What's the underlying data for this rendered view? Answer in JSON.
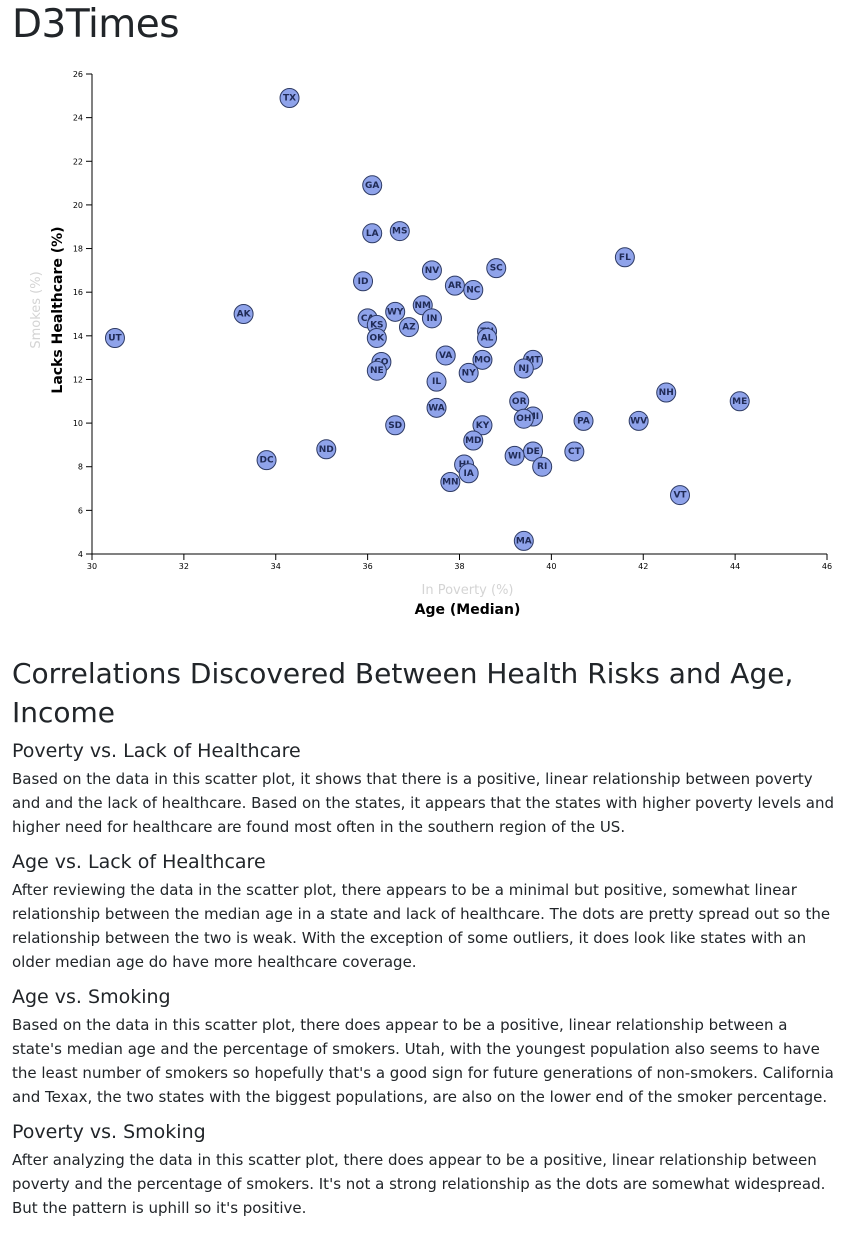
{
  "page": {
    "title": "D3Times"
  },
  "chart_data": {
    "type": "scatter",
    "x_axis": {
      "active_label": "Age (Median)",
      "inactive_labels": [
        "In Poverty (%)"
      ],
      "range": [
        30,
        46
      ],
      "ticks": [
        30,
        32,
        34,
        36,
        38,
        40,
        42,
        44,
        46
      ]
    },
    "y_axis": {
      "active_label": "Lacks Healthcare (%)",
      "inactive_labels": [
        "Smokes (%)"
      ],
      "range": [
        4,
        26
      ],
      "ticks": [
        4,
        6,
        8,
        10,
        12,
        14,
        16,
        18,
        20,
        22,
        24,
        26
      ]
    },
    "colors": {
      "marker_fill": "#8fa3ea",
      "marker_stroke": "#2d3a64",
      "marker_text": "#1f2a55"
    },
    "points": [
      {
        "state": "TX",
        "x": 34.3,
        "y": 24.9
      },
      {
        "state": "GA",
        "x": 36.1,
        "y": 20.9
      },
      {
        "state": "LA",
        "x": 36.1,
        "y": 18.7
      },
      {
        "state": "MS",
        "x": 36.7,
        "y": 18.8
      },
      {
        "state": "FL",
        "x": 41.6,
        "y": 17.6
      },
      {
        "state": "NV",
        "x": 37.4,
        "y": 17.0
      },
      {
        "state": "SC",
        "x": 38.8,
        "y": 17.1
      },
      {
        "state": "ID",
        "x": 35.9,
        "y": 16.5
      },
      {
        "state": "AR",
        "x": 37.9,
        "y": 16.3
      },
      {
        "state": "NC",
        "x": 38.3,
        "y": 16.1
      },
      {
        "state": "NM",
        "x": 37.2,
        "y": 15.4
      },
      {
        "state": "AK",
        "x": 33.3,
        "y": 15.0
      },
      {
        "state": "WY",
        "x": 36.6,
        "y": 15.1
      },
      {
        "state": "CA",
        "x": 36.0,
        "y": 14.8
      },
      {
        "state": "IN",
        "x": 37.4,
        "y": 14.8
      },
      {
        "state": "KS",
        "x": 36.2,
        "y": 14.5
      },
      {
        "state": "AZ",
        "x": 36.9,
        "y": 14.4
      },
      {
        "state": "TN",
        "x": 38.6,
        "y": 14.2
      },
      {
        "state": "UT",
        "x": 30.5,
        "y": 13.9
      },
      {
        "state": "OK",
        "x": 36.2,
        "y": 13.9
      },
      {
        "state": "AL",
        "x": 38.6,
        "y": 13.9
      },
      {
        "state": "VA",
        "x": 37.7,
        "y": 13.1
      },
      {
        "state": "MT",
        "x": 39.6,
        "y": 12.9
      },
      {
        "state": "MO",
        "x": 38.5,
        "y": 12.9
      },
      {
        "state": "CO",
        "x": 36.3,
        "y": 12.8
      },
      {
        "state": "NJ",
        "x": 39.4,
        "y": 12.5
      },
      {
        "state": "NE",
        "x": 36.2,
        "y": 12.4
      },
      {
        "state": "NY",
        "x": 38.2,
        "y": 12.3
      },
      {
        "state": "IL",
        "x": 37.5,
        "y": 11.9
      },
      {
        "state": "NH",
        "x": 42.5,
        "y": 11.4
      },
      {
        "state": "ME",
        "x": 44.1,
        "y": 11.0
      },
      {
        "state": "OR",
        "x": 39.3,
        "y": 11.0
      },
      {
        "state": "WA",
        "x": 37.5,
        "y": 10.7
      },
      {
        "state": "MI",
        "x": 39.6,
        "y": 10.3
      },
      {
        "state": "OH",
        "x": 39.4,
        "y": 10.2
      },
      {
        "state": "PA",
        "x": 40.7,
        "y": 10.1
      },
      {
        "state": "WV",
        "x": 41.9,
        "y": 10.1
      },
      {
        "state": "KY",
        "x": 38.5,
        "y": 9.9
      },
      {
        "state": "SD",
        "x": 36.6,
        "y": 9.9
      },
      {
        "state": "MD",
        "x": 38.3,
        "y": 9.2
      },
      {
        "state": "ND",
        "x": 35.1,
        "y": 8.8
      },
      {
        "state": "CT",
        "x": 40.5,
        "y": 8.7
      },
      {
        "state": "DE",
        "x": 39.6,
        "y": 8.7
      },
      {
        "state": "WI",
        "x": 39.2,
        "y": 8.5
      },
      {
        "state": "DC",
        "x": 33.8,
        "y": 8.3
      },
      {
        "state": "HI",
        "x": 38.1,
        "y": 8.1
      },
      {
        "state": "RI",
        "x": 39.8,
        "y": 8.0
      },
      {
        "state": "IA",
        "x": 38.2,
        "y": 7.7
      },
      {
        "state": "MN",
        "x": 37.8,
        "y": 7.3
      },
      {
        "state": "VT",
        "x": 42.8,
        "y": 6.7
      },
      {
        "state": "MA",
        "x": 39.4,
        "y": 4.6
      }
    ]
  },
  "article": {
    "heading": "Correlations Discovered Between Health Risks and Age, Income",
    "sections": [
      {
        "title": "Poverty vs. Lack of Healthcare",
        "body": "Based on the data in this scatter plot, it shows that there is a positive, linear relationship between poverty and and the lack of healthcare. Based on the states, it appears that the states with higher poverty levels and higher need for healthcare are found most often in the southern region of the US."
      },
      {
        "title": "Age vs. Lack of Healthcare",
        "body": "After reviewing the data in the scatter plot, there appears to be a minimal but positive, somewhat linear relationship between the median age in a state and lack of healthcare. The dots are pretty spread out so the relationship between the two is weak. With the exception of some outliers, it does look like states with an older median age do have more healthcare coverage."
      },
      {
        "title": "Age vs. Smoking",
        "body": "Based on the data in this scatter plot, there does appear to be a positive, linear relationship between a state's median age and the percentage of smokers. Utah, with the youngest population also seems to have the least number of smokers so hopefully that's a good sign for future generations of non-smokers. California and Texax, the two states with the biggest populations, are also on the lower end of the smoker percentage."
      },
      {
        "title": "Poverty vs. Smoking",
        "body": "After analyzing the data in this scatter plot, there does appear to be a positive, linear relationship between poverty and the percentage of smokers. It's not a strong relationship as the dots are somewhat widespread. But the pattern is uphill so it's positive."
      }
    ]
  }
}
